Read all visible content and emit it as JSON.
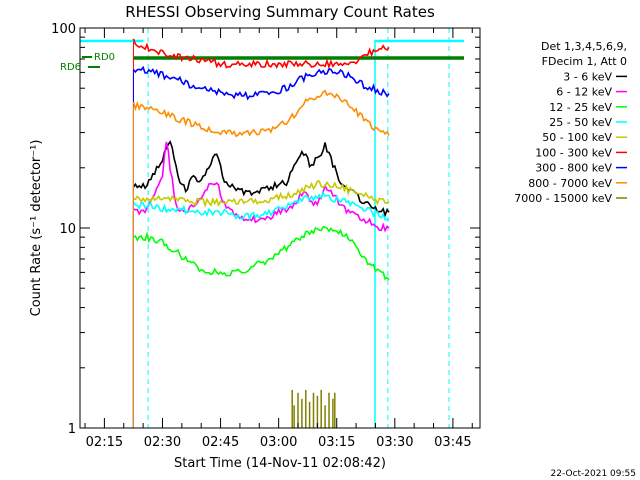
{
  "chart_data": {
    "type": "line",
    "title": "RHESSI Observing Summary Count Rates",
    "xlabel": "Start Time (14-Nov-11 02:08:42)",
    "ylabel": "Count Rate (s⁻¹ detector⁻¹)",
    "y_scale": "log",
    "ylim": [
      1,
      100
    ],
    "y_ticks": [
      {
        "value": 1,
        "label": "1"
      },
      {
        "value": 10,
        "label": "10"
      },
      {
        "value": 100,
        "label": "100"
      }
    ],
    "x_ticks": [
      {
        "minute": 15,
        "label": "02:15"
      },
      {
        "minute": 30,
        "label": "02:30"
      },
      {
        "minute": 45,
        "label": "02:45"
      },
      {
        "minute": 60,
        "label": "03:00"
      },
      {
        "minute": 75,
        "label": "03:15"
      },
      {
        "minute": 90,
        "label": "03:30"
      },
      {
        "minute": 105,
        "label": "03:45"
      }
    ],
    "xlim_minutes": [
      8.7,
      112
    ],
    "legend_header": [
      "Det 1,3,4,5,6,9,",
      "FDecim 1, Att 0"
    ],
    "legend_position": "right",
    "data_interval_minutes": [
      22.5,
      88.5
    ],
    "night_markers_minutes": [
      26.3,
      88.2,
      104.0
    ],
    "flag_labels": [
      "RD0",
      "RD6"
    ],
    "series": [
      {
        "name": "3 - 6 keV",
        "color": "#000000",
        "x": [
          22.5,
          26,
          30,
          32,
          34,
          36,
          38,
          40,
          42,
          44,
          46,
          48,
          50,
          52,
          54,
          56,
          58,
          60,
          62,
          64,
          66,
          68,
          70,
          72,
          74,
          76,
          78,
          80,
          82,
          84,
          86,
          88.5
        ],
        "y": [
          16,
          16.5,
          22,
          28,
          18,
          15.5,
          18,
          17,
          20,
          24,
          17,
          16,
          15.5,
          15,
          15,
          15.5,
          16,
          16.5,
          17,
          20,
          24,
          21,
          22,
          26,
          21,
          17,
          15.5,
          14.5,
          13.5,
          13,
          12,
          12
        ]
      },
      {
        "name": "6 - 12 keV",
        "color": "#ff00ff",
        "x": [
          22.5,
          26,
          30,
          31,
          32,
          33,
          34,
          36,
          38,
          40,
          42,
          44,
          46,
          48,
          50,
          52,
          54,
          56,
          58,
          60,
          62,
          64,
          66,
          68,
          70,
          72,
          74,
          76,
          78,
          80,
          82,
          84,
          86,
          88.5
        ],
        "y": [
          12,
          12.5,
          18,
          28,
          20,
          15,
          12.5,
          12,
          13,
          14,
          16,
          17,
          13,
          12,
          11.5,
          11,
          11,
          11,
          11.5,
          12,
          12.5,
          13,
          15,
          14,
          13,
          16,
          15,
          13,
          12,
          11.5,
          11,
          10.5,
          10,
          10
        ]
      },
      {
        "name": "12 - 25 keV",
        "color": "#00ff00",
        "x": [
          22.5,
          26,
          30,
          34,
          38,
          42,
          46,
          50,
          54,
          58,
          62,
          64,
          66,
          68,
          70,
          72,
          74,
          76,
          78,
          80,
          82,
          84,
          86,
          88.5
        ],
        "y": [
          9,
          9,
          8.5,
          7.5,
          6.5,
          6,
          6,
          6,
          6.5,
          7,
          8,
          8.5,
          9,
          9.5,
          10,
          10,
          10,
          9.5,
          9,
          8,
          7,
          6.5,
          6,
          5.5
        ]
      },
      {
        "name": "25 - 50 keV",
        "color": "#00ffff",
        "x": [
          22.5,
          26,
          30,
          34,
          38,
          42,
          46,
          50,
          54,
          58,
          62,
          64,
          66,
          68,
          70,
          72,
          74,
          76,
          78,
          80,
          82,
          84,
          86,
          88.5
        ],
        "y": [
          13,
          13,
          12.5,
          12.5,
          12,
          12,
          12,
          11.5,
          11.5,
          12,
          13,
          13.5,
          14,
          14,
          14.5,
          14.5,
          14,
          14,
          13.5,
          13,
          12.5,
          12,
          11.5,
          11
        ]
      },
      {
        "name": "50 - 100 keV",
        "color": "#c8c800",
        "x": [
          22.5,
          26,
          30,
          34,
          38,
          42,
          46,
          50,
          54,
          58,
          62,
          64,
          66,
          68,
          70,
          72,
          74,
          76,
          78,
          80,
          82,
          84,
          86,
          88.5
        ],
        "y": [
          14,
          14,
          14,
          14,
          13.5,
          13.5,
          13.5,
          13.5,
          13.5,
          14,
          14.5,
          15,
          15.5,
          16,
          16.5,
          16.5,
          16.5,
          16,
          15.5,
          15,
          14.5,
          14,
          13.5,
          13.5
        ]
      },
      {
        "name": "100 - 300 keV",
        "color": "#ff0000",
        "x": [
          22.5,
          26,
          30,
          34,
          38,
          42,
          46,
          50,
          54,
          58,
          62,
          64,
          66,
          68,
          70,
          72,
          74,
          76,
          78,
          80,
          82,
          84,
          86,
          88.5
        ],
        "y": [
          85,
          80,
          76,
          72,
          70,
          68,
          66,
          66,
          66,
          66,
          66,
          66,
          66,
          66,
          66,
          66,
          66,
          66,
          66,
          68,
          72,
          76,
          78,
          80
        ]
      },
      {
        "name": "300 - 800 keV",
        "color": "#0000ff",
        "x": [
          22.5,
          26,
          30,
          34,
          38,
          42,
          46,
          50,
          54,
          58,
          62,
          64,
          66,
          68,
          70,
          72,
          74,
          76,
          78,
          80,
          82,
          84,
          86,
          88.5
        ],
        "y": [
          62,
          61,
          58,
          55,
          51,
          49,
          47,
          46,
          46,
          47,
          50,
          53,
          56,
          58,
          60,
          61,
          61,
          60,
          58,
          55,
          52,
          50,
          48,
          47
        ]
      },
      {
        "name": "800 - 7000 keV",
        "color": "#ff8c00",
        "x": [
          22.5,
          26,
          30,
          34,
          38,
          42,
          46,
          50,
          54,
          58,
          62,
          64,
          66,
          68,
          70,
          72,
          74,
          76,
          78,
          80,
          82,
          84,
          86,
          88.5
        ],
        "y": [
          41,
          40,
          38,
          35,
          33,
          31,
          30,
          30,
          30,
          31,
          34,
          37,
          41,
          44,
          46,
          47,
          47,
          45,
          42,
          38,
          35,
          32,
          30,
          29
        ]
      },
      {
        "name": "7000 - 15000 keV",
        "color": "#808000",
        "x": [
          63.5,
          64,
          65,
          66,
          67,
          68,
          69,
          70,
          71,
          72,
          73,
          74,
          74.5
        ],
        "y": [
          1.55,
          1.3,
          1.5,
          1.4,
          1.55,
          1.35,
          1.5,
          1.45,
          1.55,
          1.3,
          1.5,
          1.4,
          1.5
        ]
      }
    ]
  },
  "footer": {
    "timestamp": "22-Oct-2021 09:55"
  }
}
